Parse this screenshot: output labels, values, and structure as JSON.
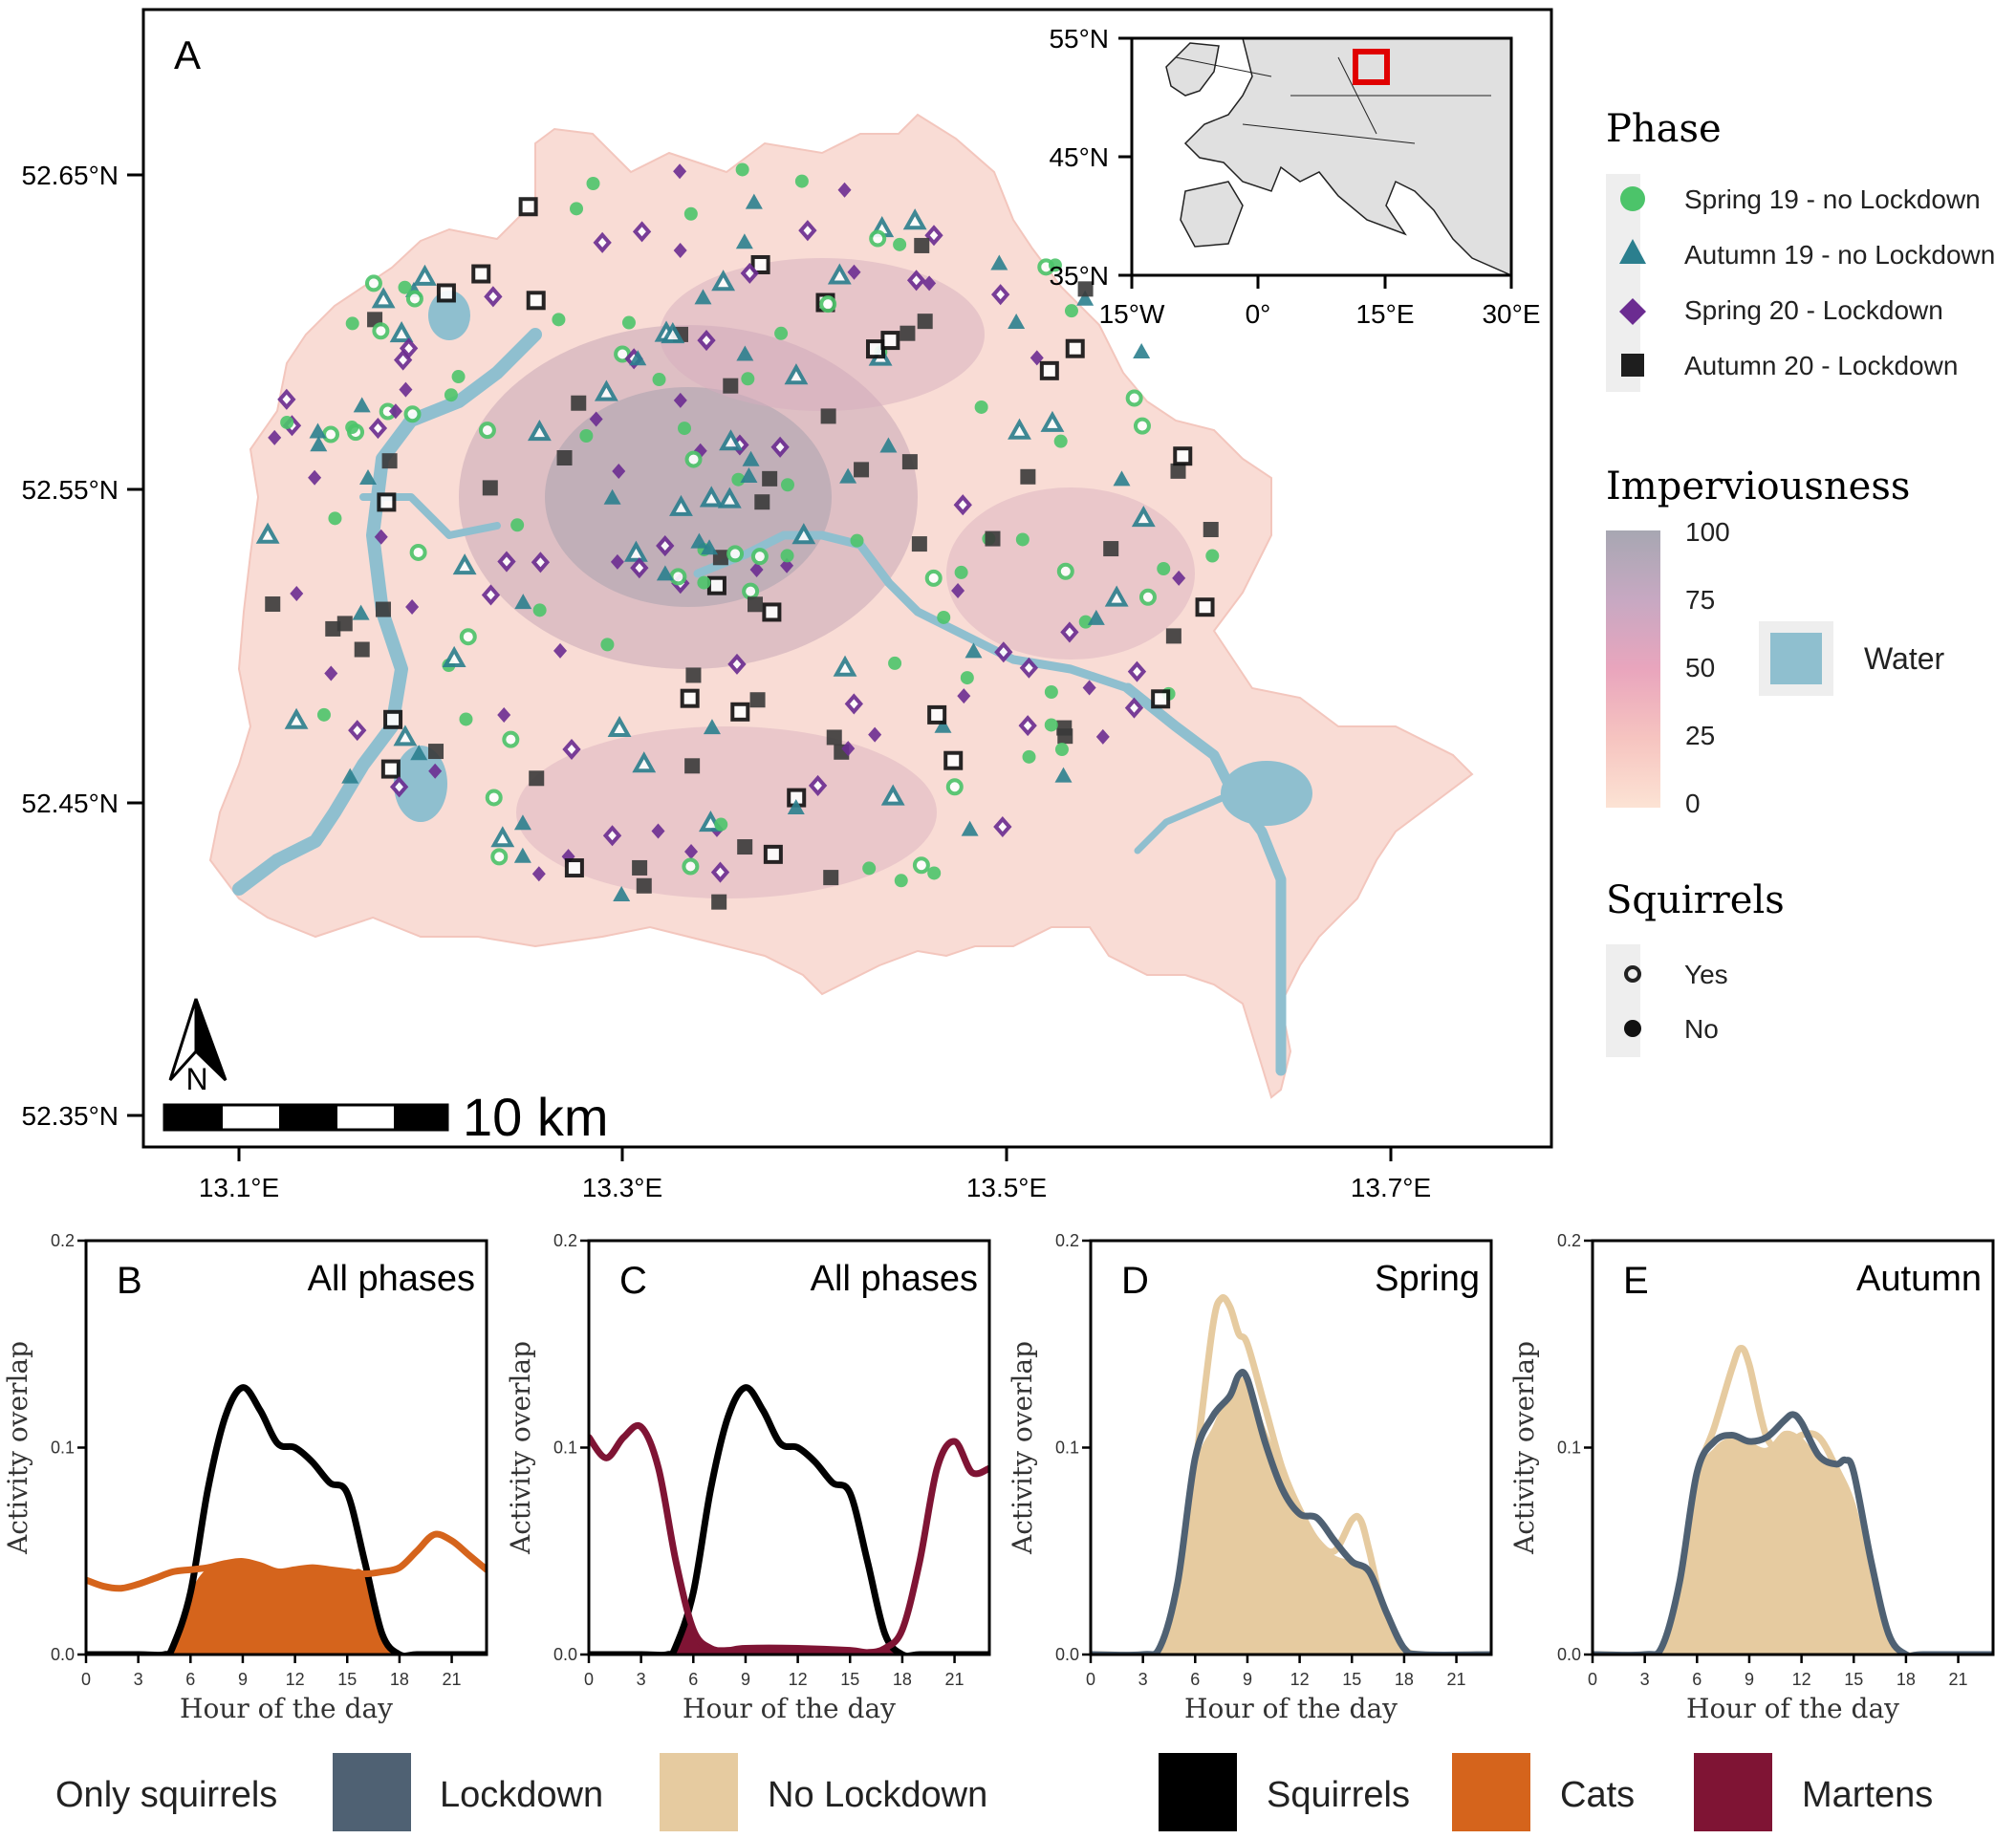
{
  "figure": {
    "panel_a": {
      "label": "A",
      "lat_ticks": [
        "52.65°N",
        "52.55°N",
        "52.45°N",
        "52.35°N"
      ],
      "lon_ticks": [
        "13.1°E",
        "13.3°E",
        "13.5°E",
        "13.7°E"
      ],
      "scale_bar_label": "10 km",
      "north_label": "N",
      "inset": {
        "lat_ticks": [
          "55°N",
          "45°N",
          "35°N"
        ],
        "lon_ticks": [
          "15°W",
          "0°",
          "15°E",
          "30°E"
        ]
      }
    },
    "legend": {
      "phase": {
        "title": "Phase",
        "items": [
          {
            "label": "Spring 19 - no Lockdown",
            "shape": "circle",
            "color": "#4cc46a"
          },
          {
            "label": "Autumn 19 - no Lockdown",
            "shape": "triangle",
            "color": "#2b7f8e"
          },
          {
            "label": "Spring 20 - Lockdown",
            "shape": "diamond",
            "color": "#6b2c91"
          },
          {
            "label": "Autumn 20 - Lockdown",
            "shape": "square",
            "color": "#1e1e1e"
          }
        ]
      },
      "imperviousness": {
        "title": "Imperviousness",
        "ticks": [
          "100",
          "75",
          "50",
          "25",
          "0"
        ],
        "water_label": "Water",
        "water_color": "#8fbfcf"
      },
      "squirrels": {
        "title": "Squirrels",
        "items": [
          {
            "label": "Yes",
            "symbol": "hollow-circle"
          },
          {
            "label": "No",
            "symbol": "filled-circle"
          }
        ]
      }
    },
    "bottom_legend": {
      "group_label": "Only squirrels",
      "items": [
        {
          "label": "Lockdown",
          "color": "#4f6173"
        },
        {
          "label": "No Lockdown",
          "color": "#e6cba0"
        },
        {
          "label": "Squirrels",
          "color": "#000000"
        },
        {
          "label": "Cats",
          "color": "#d5641c"
        },
        {
          "label": "Martens",
          "color": "#7f1434"
        }
      ]
    }
  },
  "chart_data": [
    {
      "panel": "B",
      "type": "area",
      "title": "All phases",
      "xlabel": "Hour of the day",
      "ylabel": "Activity overlap",
      "xlim": [
        0,
        23
      ],
      "ylim": [
        0,
        0.2
      ],
      "xticks": [
        0,
        3,
        6,
        9,
        12,
        15,
        18,
        21
      ],
      "yticks": [
        0.0,
        0.1,
        0.2
      ],
      "series": [
        {
          "name": "Squirrels",
          "role": "line",
          "color": "#000000",
          "x": [
            0,
            3,
            4.5,
            5,
            6,
            7,
            8,
            9,
            10,
            11,
            12,
            13,
            14,
            15,
            16,
            17,
            18,
            19,
            21,
            23
          ],
          "y": [
            0,
            0,
            0,
            0.004,
            0.03,
            0.08,
            0.115,
            0.129,
            0.118,
            0.102,
            0.1,
            0.093,
            0.083,
            0.078,
            0.045,
            0.01,
            0,
            0,
            0,
            0
          ]
        },
        {
          "name": "Cats",
          "role": "line",
          "color": "#d5641c",
          "x": [
            0,
            1,
            2,
            3,
            4,
            5,
            6,
            7,
            8,
            9,
            10,
            11,
            12,
            13,
            14,
            15,
            16,
            17,
            18,
            19,
            20,
            21,
            22,
            23
          ],
          "y": [
            0.036,
            0.033,
            0.032,
            0.034,
            0.037,
            0.04,
            0.041,
            0.042,
            0.044,
            0.045,
            0.043,
            0.04,
            0.041,
            0.042,
            0.041,
            0.04,
            0.039,
            0.04,
            0.042,
            0.05,
            0.058,
            0.055,
            0.048,
            0.041
          ]
        },
        {
          "name": "Overlap",
          "role": "area",
          "color": "#d5641c",
          "x": [
            0,
            4.5,
            5,
            6,
            7,
            8,
            9,
            10,
            11,
            12,
            13,
            14,
            15,
            16,
            17,
            18,
            23
          ],
          "y": [
            0,
            0,
            0.004,
            0.03,
            0.042,
            0.044,
            0.045,
            0.043,
            0.04,
            0.041,
            0.042,
            0.041,
            0.04,
            0.039,
            0.01,
            0,
            0
          ]
        }
      ]
    },
    {
      "panel": "C",
      "type": "area",
      "title": "All phases",
      "xlabel": "Hour of the day",
      "ylabel": "Activity overlap",
      "xlim": [
        0,
        23
      ],
      "ylim": [
        0,
        0.2
      ],
      "xticks": [
        0,
        3,
        6,
        9,
        12,
        15,
        18,
        21
      ],
      "yticks": [
        0.0,
        0.1,
        0.2
      ],
      "series": [
        {
          "name": "Squirrels",
          "role": "line",
          "color": "#000000",
          "x": [
            0,
            3,
            4.5,
            5,
            6,
            7,
            8,
            9,
            10,
            11,
            12,
            13,
            14,
            15,
            16,
            17,
            18,
            19,
            21,
            23
          ],
          "y": [
            0,
            0,
            0,
            0.004,
            0.03,
            0.08,
            0.115,
            0.129,
            0.118,
            0.102,
            0.1,
            0.093,
            0.083,
            0.078,
            0.045,
            0.01,
            0,
            0,
            0,
            0
          ]
        },
        {
          "name": "Martens",
          "role": "line",
          "color": "#7f1434",
          "x": [
            0,
            1,
            2,
            3,
            4,
            5,
            6,
            7,
            8,
            9,
            12,
            15,
            16,
            17,
            18,
            19,
            20,
            21,
            22,
            23
          ],
          "y": [
            0.105,
            0.095,
            0.105,
            0.11,
            0.09,
            0.045,
            0.012,
            0.003,
            0.002,
            0.003,
            0.003,
            0.002,
            0.001,
            0.003,
            0.012,
            0.045,
            0.09,
            0.103,
            0.088,
            0.09
          ]
        },
        {
          "name": "Overlap",
          "role": "area",
          "color": "#7f1434",
          "x": [
            0,
            4.5,
            5,
            5.5,
            6,
            6.5,
            7,
            8,
            9,
            12,
            15,
            16,
            17,
            17.5,
            18,
            23
          ],
          "y": [
            0,
            0,
            0.004,
            0.016,
            0.012,
            0.006,
            0.003,
            0.002,
            0.003,
            0.003,
            0.002,
            0.001,
            0.003,
            0.004,
            0,
            0
          ]
        }
      ]
    },
    {
      "panel": "D",
      "type": "area",
      "title": "Spring",
      "xlabel": "Hour of the day",
      "ylabel": "Activity overlap",
      "xlim": [
        0,
        23
      ],
      "ylim": [
        0,
        0.2
      ],
      "xticks": [
        0,
        3,
        6,
        9,
        12,
        15,
        18,
        21
      ],
      "yticks": [
        0.0,
        0.1,
        0.2
      ],
      "series": [
        {
          "name": "No Lockdown",
          "role": "line",
          "color": "#e6cba0",
          "x": [
            0,
            3,
            4,
            5,
            6,
            7,
            7.5,
            8,
            8.5,
            9,
            10,
            11,
            12,
            13,
            14,
            15,
            15.5,
            16,
            17,
            18,
            19,
            23
          ],
          "y": [
            0,
            0,
            0.003,
            0.03,
            0.09,
            0.158,
            0.172,
            0.168,
            0.155,
            0.15,
            0.12,
            0.09,
            0.07,
            0.055,
            0.05,
            0.065,
            0.065,
            0.05,
            0.015,
            0.003,
            0,
            0
          ]
        },
        {
          "name": "Overlap",
          "role": "area",
          "color": "#e6cba0",
          "x": [
            0,
            3,
            4,
            5,
            6,
            7,
            8,
            9,
            10,
            11,
            12,
            13,
            14,
            15,
            16,
            17,
            18,
            19,
            23
          ],
          "y": [
            0,
            0,
            0.003,
            0.03,
            0.09,
            0.11,
            0.128,
            0.133,
            0.11,
            0.09,
            0.068,
            0.055,
            0.048,
            0.045,
            0.04,
            0.015,
            0.003,
            0,
            0
          ]
        },
        {
          "name": "Lockdown",
          "role": "line",
          "color": "#4f6173",
          "x": [
            0,
            3,
            4,
            5,
            6,
            7,
            8,
            8.5,
            9,
            10,
            11,
            12,
            13,
            14,
            15,
            16,
            17,
            18,
            19,
            23
          ],
          "y": [
            0,
            0,
            0.004,
            0.035,
            0.095,
            0.115,
            0.125,
            0.135,
            0.133,
            0.103,
            0.08,
            0.068,
            0.066,
            0.055,
            0.045,
            0.04,
            0.02,
            0.003,
            0,
            0
          ]
        }
      ]
    },
    {
      "panel": "E",
      "type": "area",
      "title": "Autumn",
      "xlabel": "Hour of the day",
      "ylabel": "Activity overlap",
      "xlim": [
        0,
        23
      ],
      "ylim": [
        0,
        0.2
      ],
      "xticks": [
        0,
        3,
        6,
        9,
        12,
        15,
        18,
        21
      ],
      "yticks": [
        0.0,
        0.1,
        0.2
      ],
      "series": [
        {
          "name": "No Lockdown",
          "role": "line",
          "color": "#e6cba0",
          "x": [
            0,
            3,
            4,
            5,
            6,
            7,
            8,
            8.5,
            9,
            10,
            11,
            12,
            13,
            14,
            15,
            16,
            17,
            18,
            19,
            23
          ],
          "y": [
            0,
            0,
            0.003,
            0.03,
            0.085,
            0.11,
            0.138,
            0.148,
            0.14,
            0.105,
            0.1,
            0.106,
            0.105,
            0.09,
            0.07,
            0.03,
            0.008,
            0,
            0,
            0
          ]
        },
        {
          "name": "Overlap",
          "role": "area",
          "color": "#e6cba0",
          "x": [
            0,
            3,
            4,
            5,
            6,
            7,
            8,
            9,
            10,
            11,
            12,
            13,
            14,
            15,
            16,
            17,
            18,
            19,
            23
          ],
          "y": [
            0,
            0,
            0.003,
            0.03,
            0.085,
            0.1,
            0.105,
            0.103,
            0.1,
            0.108,
            0.105,
            0.095,
            0.09,
            0.07,
            0.03,
            0.008,
            0,
            0,
            0
          ]
        },
        {
          "name": "Lockdown",
          "role": "line",
          "color": "#4f6173",
          "x": [
            0,
            3,
            4,
            5,
            6,
            7,
            8,
            9,
            10,
            11,
            11.5,
            12,
            13,
            14,
            14.5,
            15,
            16,
            17,
            18,
            19,
            23
          ],
          "y": [
            0,
            0,
            0.004,
            0.035,
            0.088,
            0.103,
            0.106,
            0.103,
            0.105,
            0.113,
            0.116,
            0.112,
            0.096,
            0.092,
            0.094,
            0.088,
            0.045,
            0.01,
            0,
            0,
            0
          ]
        }
      ]
    }
  ]
}
